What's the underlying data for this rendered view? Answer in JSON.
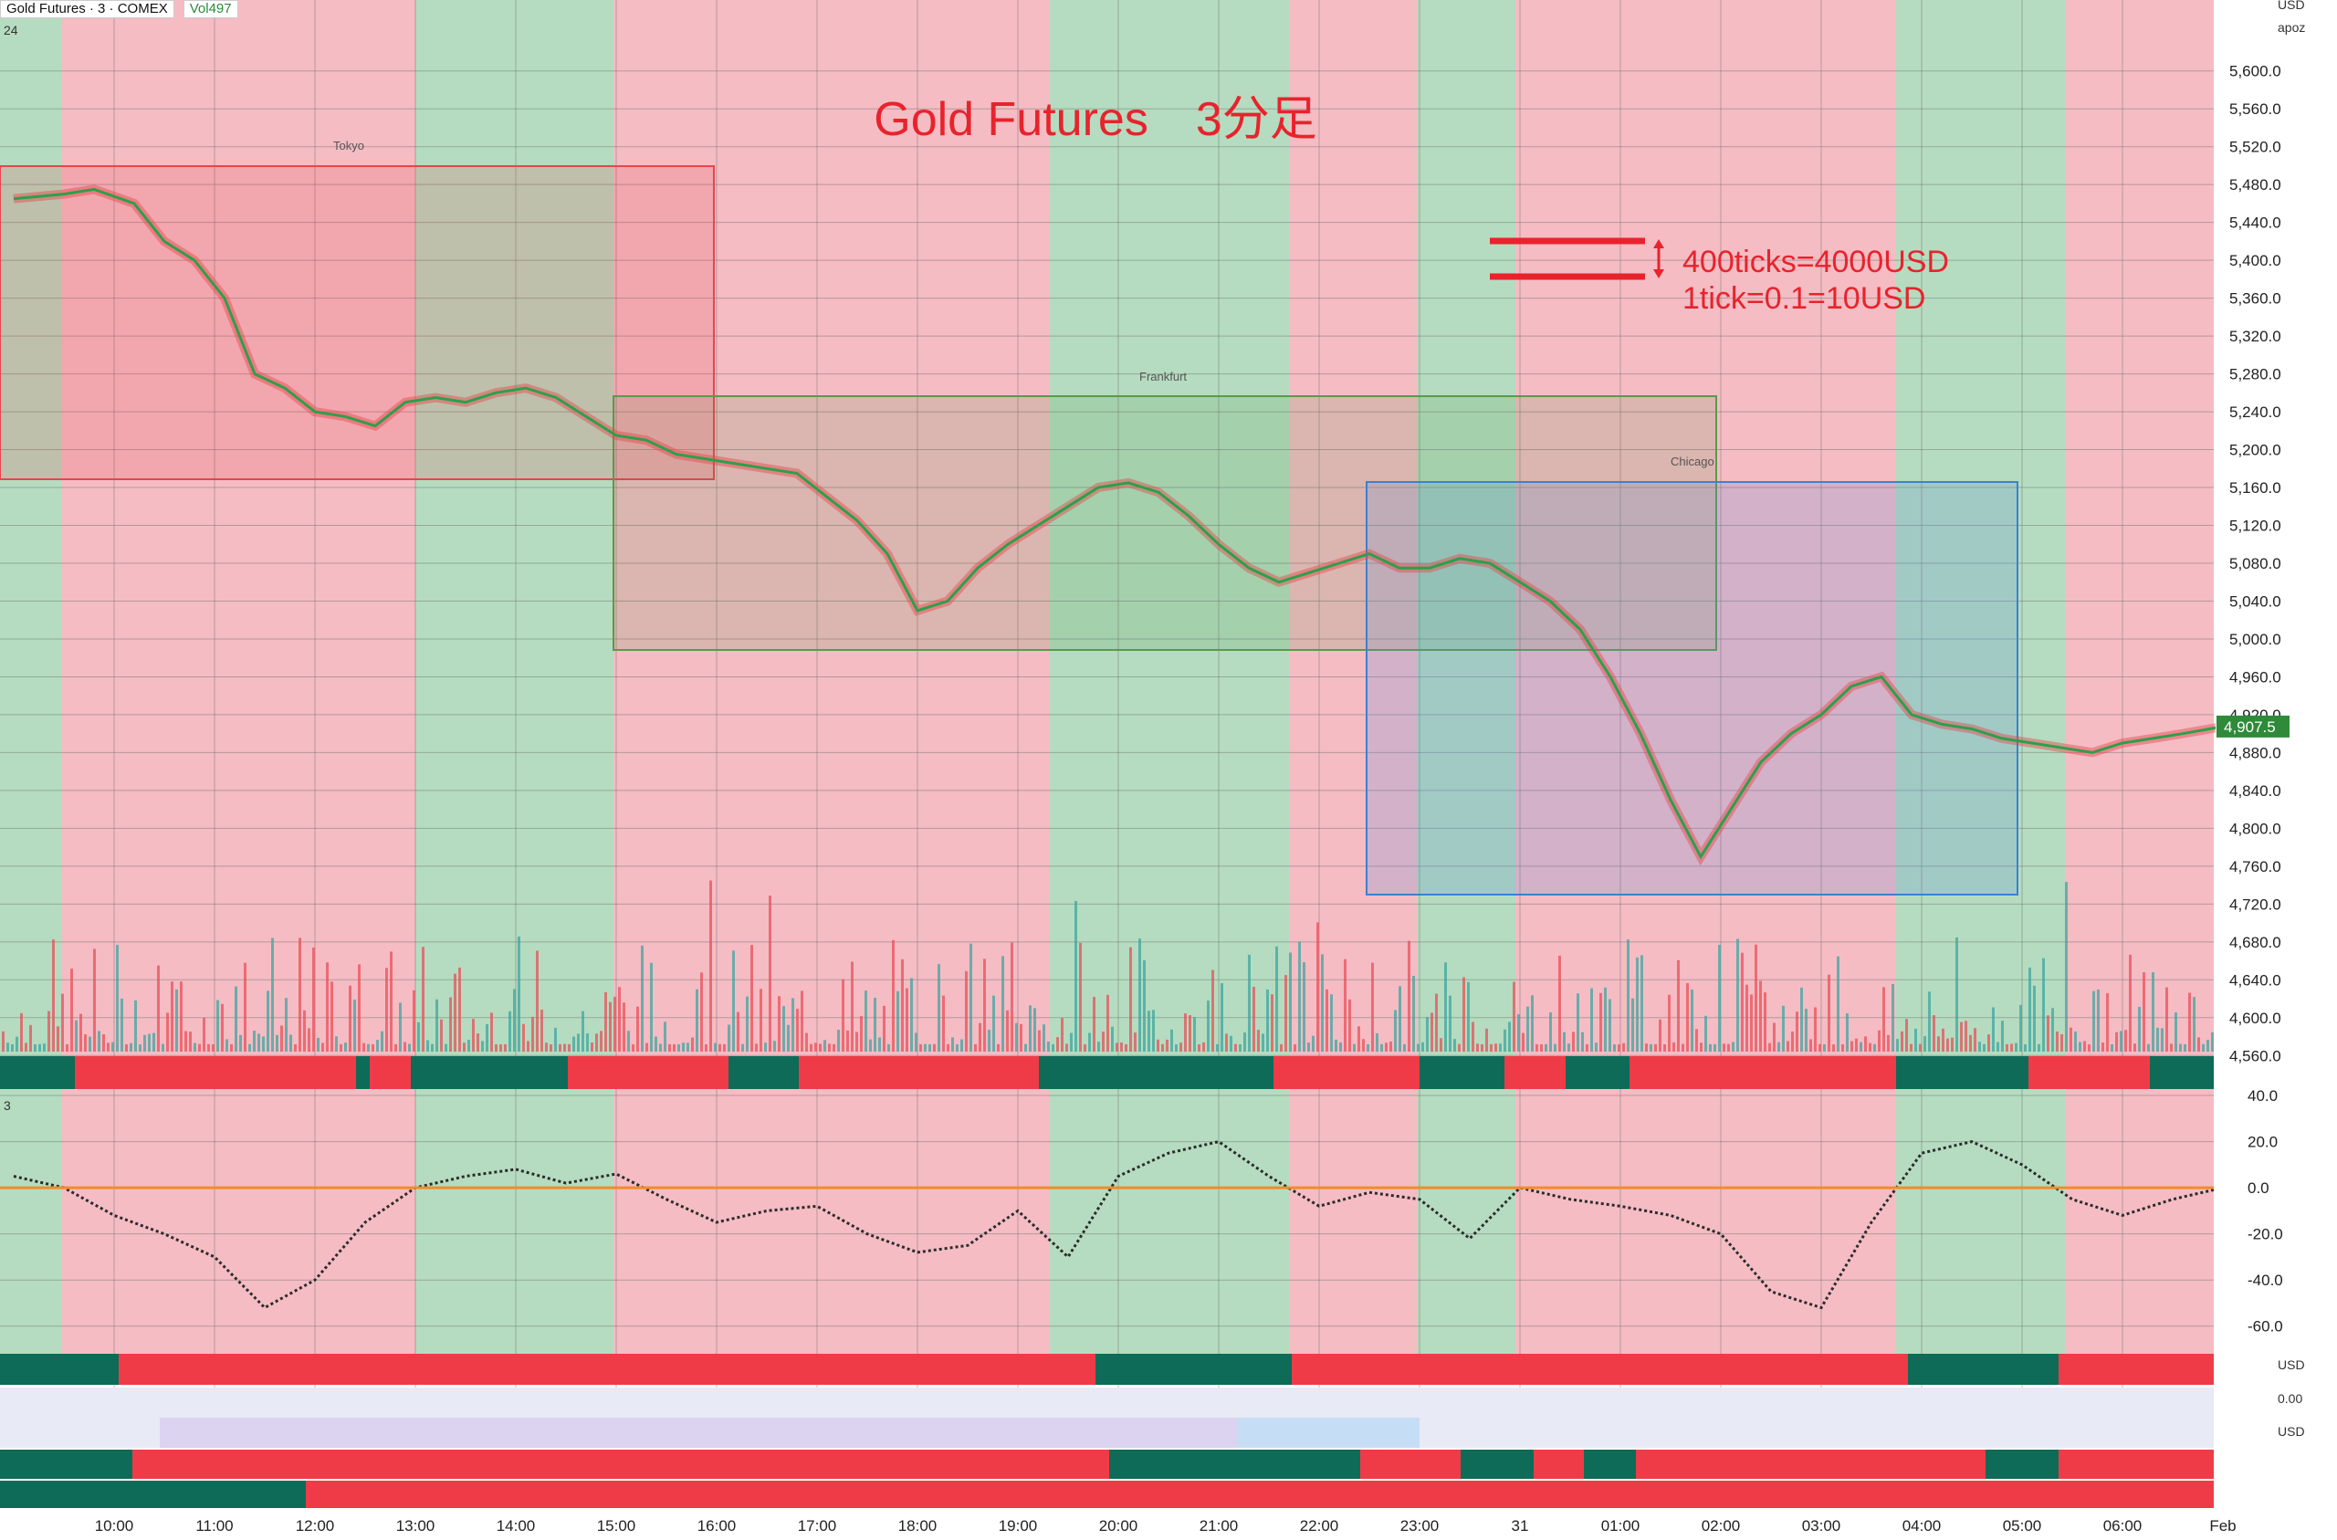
{
  "header": {
    "symbol_label": "Gold Futures · 3 · COMEX",
    "vol_label": "Vol",
    "vol_value": "497",
    "indicator_tag": "24",
    "osc_tag": "3"
  },
  "right_axis": {
    "currency": "USD",
    "sub_label": "apoz",
    "current_price": "4,907.5",
    "osc_currency_1": "USD",
    "osc_value": "0.00",
    "osc_currency_2": "USD"
  },
  "colors": {
    "bull_zone": "#b5dcc0",
    "bear_zone": "#f5bcc4",
    "bull_bar": "#0d6b57",
    "bear_bar": "#ef3b47",
    "price_up": "#2ca048",
    "price_down": "#e8454d",
    "title": "#e8232c"
  },
  "chart_data": {
    "type": "line",
    "title": "Gold Futures　3分足",
    "annotations": [
      "400ticks=4000USD",
      "1tick=0.1=10USD"
    ],
    "session_labels": [
      "Tokyo",
      "Frankfurt",
      "Chicago"
    ],
    "x_ticks": [
      "10:00",
      "11:00",
      "12:00",
      "13:00",
      "14:00",
      "15:00",
      "16:00",
      "17:00",
      "18:00",
      "19:00",
      "20:00",
      "21:00",
      "22:00",
      "23:00",
      "31",
      "01:00",
      "02:00",
      "03:00",
      "04:00",
      "05:00",
      "06:00",
      "Feb"
    ],
    "y_ticks": [
      "5,600.0",
      "5,560.0",
      "5,520.0",
      "5,480.0",
      "5,440.0",
      "5,400.0",
      "5,360.0",
      "5,320.0",
      "5,280.0",
      "5,240.0",
      "5,200.0",
      "5,160.0",
      "5,120.0",
      "5,080.0",
      "5,040.0",
      "5,000.0",
      "4,960.0",
      "4,920.0",
      "4,880.0",
      "4,840.0",
      "4,800.0",
      "4,760.0",
      "4,720.0",
      "4,680.0",
      "4,640.0",
      "4,600.0",
      "4,560.0"
    ],
    "osc_ticks": [
      "40.0",
      "20.0",
      "0.0",
      "-20.0",
      "-40.0",
      "-60.0"
    ],
    "ylim": [
      4540,
      5620
    ],
    "osc_ylim": [
      -70,
      42
    ],
    "price_series": {
      "name": "Gold Futures",
      "x": [
        9.0,
        9.5,
        9.8,
        10.2,
        10.5,
        10.8,
        11.1,
        11.4,
        11.7,
        12.0,
        12.3,
        12.6,
        12.9,
        13.2,
        13.5,
        13.8,
        14.1,
        14.4,
        14.7,
        15.0,
        15.3,
        15.6,
        15.9,
        16.2,
        16.5,
        16.8,
        17.1,
        17.4,
        17.7,
        18.0,
        18.3,
        18.6,
        18.9,
        19.2,
        19.5,
        19.8,
        20.1,
        20.4,
        20.7,
        21.0,
        21.3,
        21.6,
        21.9,
        22.2,
        22.5,
        22.8,
        23.1,
        23.4,
        23.7,
        24.0,
        24.3,
        24.6,
        24.9,
        25.2,
        25.5,
        25.8,
        26.1,
        26.4,
        26.7,
        27.0,
        27.3,
        27.6,
        27.9,
        28.2,
        28.5,
        28.8,
        29.1,
        29.4,
        29.7,
        30.0,
        30.3,
        30.6,
        31.0
      ],
      "y": [
        5465,
        5470,
        5475,
        5460,
        5420,
        5400,
        5360,
        5280,
        5265,
        5240,
        5235,
        5225,
        5250,
        5255,
        5250,
        5260,
        5265,
        5255,
        5235,
        5215,
        5210,
        5195,
        5190,
        5185,
        5180,
        5175,
        5150,
        5125,
        5090,
        5030,
        5040,
        5075,
        5100,
        5120,
        5140,
        5160,
        5165,
        5155,
        5130,
        5100,
        5075,
        5060,
        5070,
        5080,
        5090,
        5075,
        5075,
        5085,
        5080,
        5060,
        5040,
        5010,
        4960,
        4900,
        4830,
        4770,
        4820,
        4870,
        4900,
        4920,
        4950,
        4960,
        4920,
        4910,
        4905,
        4895,
        4890,
        4885,
        4880,
        4890,
        4895,
        4900,
        4907.5
      ]
    },
    "osc_series": {
      "x": [
        9.0,
        9.5,
        10.0,
        10.5,
        11.0,
        11.5,
        12.0,
        12.5,
        13.0,
        13.5,
        14.0,
        14.5,
        15.0,
        15.5,
        16.0,
        16.5,
        17.0,
        17.5,
        18.0,
        18.5,
        19.0,
        19.5,
        20.0,
        20.5,
        21.0,
        21.5,
        22.0,
        22.5,
        23.0,
        23.5,
        24.0,
        24.5,
        25.0,
        25.5,
        26.0,
        26.5,
        27.0,
        27.5,
        28.0,
        28.5,
        29.0,
        29.5,
        30.0,
        30.5,
        31.0
      ],
      "y": [
        5,
        0,
        -12,
        -20,
        -30,
        -52,
        -40,
        -15,
        0,
        5,
        8,
        2,
        6,
        -5,
        -15,
        -10,
        -8,
        -20,
        -28,
        -25,
        -10,
        -30,
        5,
        15,
        20,
        5,
        -8,
        -2,
        -5,
        -22,
        0,
        -5,
        -8,
        -12,
        -20,
        -45,
        -52,
        -15,
        15,
        20,
        10,
        -5,
        -12,
        -5,
        0
      ]
    }
  }
}
